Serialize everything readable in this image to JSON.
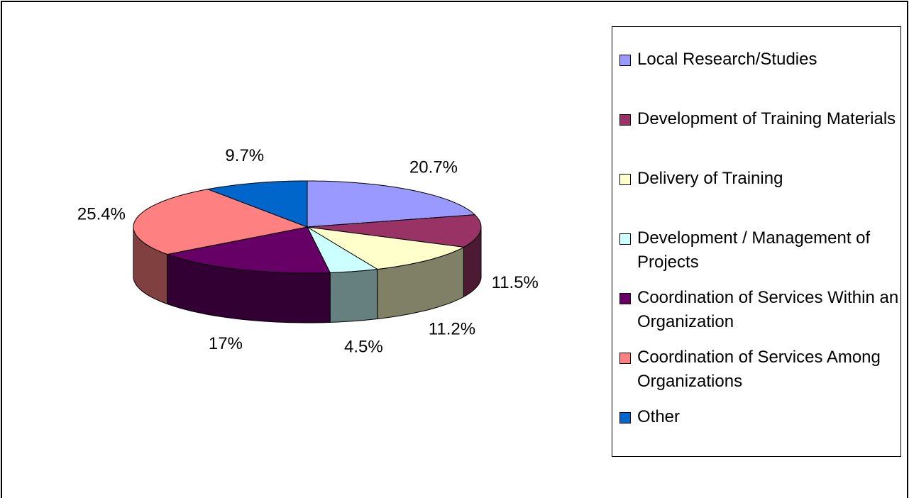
{
  "chart_data": {
    "type": "pie",
    "categories": [
      "Local Research/Studies",
      "Development of Training Materials",
      "Delivery of Training",
      "Development / Management of Projects",
      "Coordination of Services Within an Organization",
      "Coordination of Services Among Organizations",
      "Other"
    ],
    "values": [
      20.7,
      11.5,
      11.2,
      4.5,
      17,
      25.4,
      9.7
    ],
    "value_labels": [
      "20.7%",
      "11.5%",
      "11.2%",
      "4.5%",
      "17%",
      "25.4%",
      "9.7%"
    ],
    "colors": [
      "#9999ff",
      "#993366",
      "#ffffcc",
      "#ccffff",
      "#660066",
      "#ff8080",
      "#0066cc"
    ],
    "legend": "right"
  }
}
